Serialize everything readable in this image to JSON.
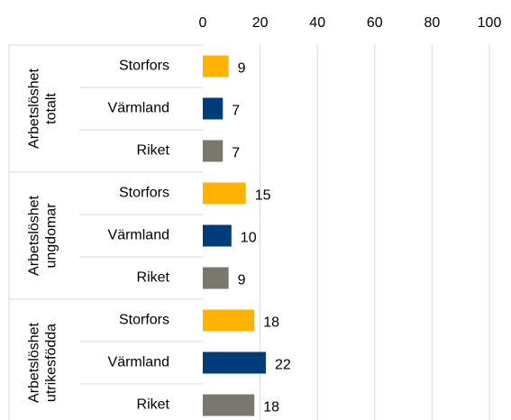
{
  "chart_data": {
    "type": "bar",
    "groups": [
      [
        "Arbetslöshet",
        "totalt"
      ],
      [
        "Arbetslöshet",
        "ungdomar"
      ],
      [
        "Arbetslöshet",
        "utrikesfödda"
      ]
    ],
    "categories": [
      "Storfors",
      "Värmland",
      "Riket",
      "Storfors",
      "Värmland",
      "Riket",
      "Storfors",
      "Värmland",
      "Riket"
    ],
    "values": [
      9,
      7,
      7,
      15,
      10,
      9,
      18,
      22,
      18
    ],
    "colors": [
      "#ffb300",
      "#003b7a",
      "#7a776f",
      "#ffb300",
      "#003b7a",
      "#7a776f",
      "#ffb300",
      "#003b7a",
      "#7a776f"
    ],
    "xlim": [
      0,
      100
    ],
    "xticks": [
      0,
      20,
      40,
      60,
      80,
      100
    ],
    "grid": true
  }
}
